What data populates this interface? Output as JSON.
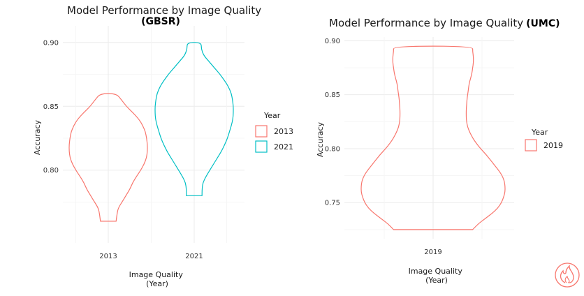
{
  "chart_data": [
    {
      "type": "violin",
      "title": "Model Performance by Image Quality",
      "title_bold": "(GBSR)",
      "xlabel": "Image Quality\n(Year)",
      "ylabel": "Accuracy",
      "categories": [
        "2013",
        "2021"
      ],
      "yticks": [
        "0.80",
        "0.85",
        "0.90"
      ],
      "ytick_values": [
        0.8,
        0.85,
        0.9
      ],
      "ylim": [
        0.743,
        0.913
      ],
      "grid": true,
      "legend": {
        "title": "Year",
        "position": "right",
        "items": [
          {
            "label": "2013",
            "color": "#F8766D"
          },
          {
            "label": "2021",
            "color": "#00BFC4"
          }
        ]
      },
      "series": [
        {
          "name": "2013",
          "color": "#F8766D",
          "category": "2013",
          "min": 0.76,
          "max": 0.86,
          "density": [
            [
              0.76,
              0.2
            ],
            [
              0.765,
              0.22
            ],
            [
              0.77,
              0.25
            ],
            [
              0.775,
              0.35
            ],
            [
              0.78,
              0.45
            ],
            [
              0.785,
              0.55
            ],
            [
              0.79,
              0.62
            ],
            [
              0.795,
              0.72
            ],
            [
              0.8,
              0.83
            ],
            [
              0.805,
              0.92
            ],
            [
              0.81,
              0.98
            ],
            [
              0.815,
              1.0
            ],
            [
              0.82,
              1.0
            ],
            [
              0.825,
              0.98
            ],
            [
              0.83,
              0.95
            ],
            [
              0.835,
              0.88
            ],
            [
              0.84,
              0.78
            ],
            [
              0.845,
              0.63
            ],
            [
              0.85,
              0.46
            ],
            [
              0.855,
              0.34
            ],
            [
              0.86,
              0.2
            ]
          ]
        },
        {
          "name": "2021",
          "color": "#00BFC4",
          "category": "2021",
          "min": 0.78,
          "max": 0.9,
          "density": [
            [
              0.78,
              0.2
            ],
            [
              0.785,
              0.2
            ],
            [
              0.79,
              0.22
            ],
            [
              0.795,
              0.3
            ],
            [
              0.8,
              0.4
            ],
            [
              0.805,
              0.5
            ],
            [
              0.81,
              0.6
            ],
            [
              0.815,
              0.7
            ],
            [
              0.82,
              0.78
            ],
            [
              0.825,
              0.85
            ],
            [
              0.83,
              0.9
            ],
            [
              0.835,
              0.95
            ],
            [
              0.84,
              0.99
            ],
            [
              0.845,
              1.0
            ],
            [
              0.85,
              1.0
            ],
            [
              0.855,
              0.98
            ],
            [
              0.86,
              0.95
            ],
            [
              0.865,
              0.88
            ],
            [
              0.87,
              0.78
            ],
            [
              0.875,
              0.66
            ],
            [
              0.88,
              0.52
            ],
            [
              0.885,
              0.38
            ],
            [
              0.89,
              0.24
            ],
            [
              0.895,
              0.18
            ],
            [
              0.9,
              0.18
            ]
          ]
        }
      ]
    },
    {
      "type": "violin",
      "title": "Model Performance by Image Quality",
      "title_bold": "(UMC)",
      "xlabel": "Image Quality\n(Year)",
      "ylabel": "Accuracy",
      "categories": [
        "2019"
      ],
      "yticks": [
        "0.75",
        "0.80",
        "0.85",
        "0.90"
      ],
      "ytick_values": [
        0.75,
        0.8,
        0.85,
        0.9
      ],
      "ylim": [
        0.7165,
        0.9035
      ],
      "grid": true,
      "legend": {
        "title": "Year",
        "position": "right",
        "items": [
          {
            "label": "2019",
            "color": "#F8766D"
          }
        ]
      },
      "series": [
        {
          "name": "2019",
          "color": "#F8766D",
          "category": "2019",
          "min": 0.725,
          "max": 0.895,
          "density": [
            [
              0.725,
              0.55
            ],
            [
              0.73,
              0.62
            ],
            [
              0.735,
              0.72
            ],
            [
              0.74,
              0.82
            ],
            [
              0.745,
              0.9
            ],
            [
              0.75,
              0.95
            ],
            [
              0.755,
              0.98
            ],
            [
              0.76,
              1.0
            ],
            [
              0.765,
              1.0
            ],
            [
              0.77,
              0.99
            ],
            [
              0.775,
              0.96
            ],
            [
              0.78,
              0.91
            ],
            [
              0.785,
              0.85
            ],
            [
              0.79,
              0.79
            ],
            [
              0.795,
              0.73
            ],
            [
              0.8,
              0.66
            ],
            [
              0.805,
              0.6
            ],
            [
              0.81,
              0.55
            ],
            [
              0.815,
              0.51
            ],
            [
              0.82,
              0.48
            ],
            [
              0.825,
              0.465
            ],
            [
              0.83,
              0.46
            ],
            [
              0.835,
              0.46
            ],
            [
              0.84,
              0.465
            ],
            [
              0.845,
              0.47
            ],
            [
              0.85,
              0.48
            ],
            [
              0.855,
              0.49
            ],
            [
              0.86,
              0.5
            ],
            [
              0.865,
              0.52
            ],
            [
              0.87,
              0.54
            ],
            [
              0.875,
              0.55
            ],
            [
              0.88,
              0.56
            ],
            [
              0.885,
              0.56
            ],
            [
              0.89,
              0.55
            ],
            [
              0.895,
              0.55
            ]
          ]
        }
      ]
    }
  ],
  "watermark": {
    "name": "flame-logo-icon",
    "color": "#F8766D"
  }
}
